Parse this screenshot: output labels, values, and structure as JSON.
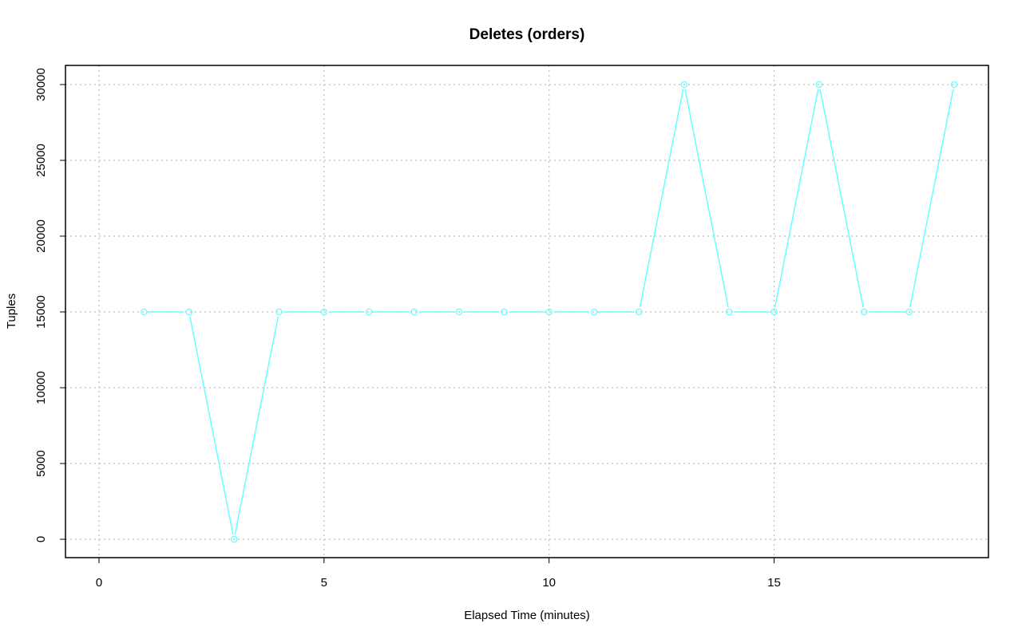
{
  "chart_data": {
    "type": "line",
    "title": "Deletes (orders)",
    "xlabel": "Elapsed Time (minutes)",
    "ylabel": "Tuples",
    "xlim": [
      0,
      19
    ],
    "ylim": [
      0,
      30000
    ],
    "x_ticks": [
      0,
      5,
      10,
      15
    ],
    "y_ticks": [
      0,
      5000,
      10000,
      15000,
      20000,
      25000,
      30000
    ],
    "grid": true,
    "legend": "none",
    "series": [
      {
        "color": "#66ffff",
        "marker": "circle",
        "x": [
          1,
          2,
          3,
          4,
          5,
          6,
          7,
          8,
          9,
          10,
          11,
          12,
          13,
          14,
          15,
          16,
          17,
          18,
          19
        ],
        "y": [
          15000,
          15000,
          0,
          15000,
          15000,
          15000,
          15000,
          15000,
          15000,
          15000,
          15000,
          15000,
          30000,
          15000,
          15000,
          30000,
          15000,
          15000,
          30000
        ]
      }
    ]
  }
}
